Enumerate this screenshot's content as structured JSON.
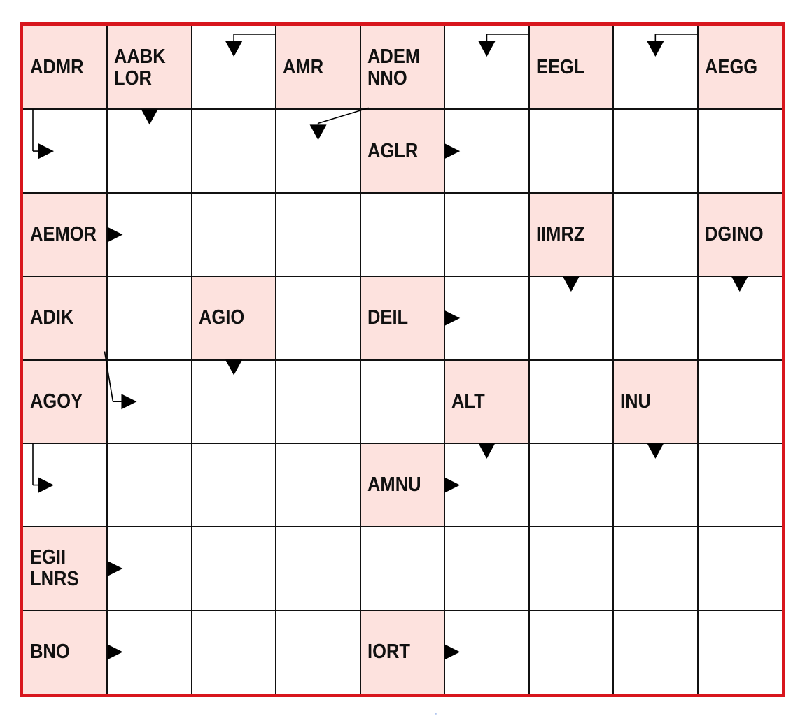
{
  "puzzle": {
    "rows": 8,
    "cols": 9,
    "colors": {
      "border": "#d8161d",
      "clue_fill": "#fde2de",
      "grid_line": "#111111"
    },
    "clues": [
      {
        "r": 0,
        "c": 0,
        "text": "ADMR"
      },
      {
        "r": 0,
        "c": 1,
        "text": "AABK\nLOR"
      },
      {
        "r": 0,
        "c": 3,
        "text": "AMR"
      },
      {
        "r": 0,
        "c": 4,
        "text": "ADEM\nNNO"
      },
      {
        "r": 0,
        "c": 6,
        "text": "EEGL"
      },
      {
        "r": 0,
        "c": 8,
        "text": "AEGG"
      },
      {
        "r": 1,
        "c": 4,
        "text": "AGLR"
      },
      {
        "r": 2,
        "c": 0,
        "text": "AEMOR"
      },
      {
        "r": 2,
        "c": 6,
        "text": "IIMRZ"
      },
      {
        "r": 2,
        "c": 8,
        "text": "DGINO"
      },
      {
        "r": 3,
        "c": 0,
        "text": "ADIK"
      },
      {
        "r": 3,
        "c": 2,
        "text": "AGIO"
      },
      {
        "r": 3,
        "c": 4,
        "text": "DEIL"
      },
      {
        "r": 4,
        "c": 0,
        "text": "AGOY"
      },
      {
        "r": 4,
        "c": 5,
        "text": "ALT"
      },
      {
        "r": 4,
        "c": 7,
        "text": "INU"
      },
      {
        "r": 5,
        "c": 4,
        "text": "AMNU"
      },
      {
        "r": 6,
        "c": 0,
        "text": "EGII\nLNRS"
      },
      {
        "r": 7,
        "c": 0,
        "text": "BNO"
      },
      {
        "r": 7,
        "c": 4,
        "text": "IORT"
      }
    ],
    "arrows": [
      {
        "kind": "down",
        "r": 0,
        "c": 2,
        "from": [
          0,
          3
        ]
      },
      {
        "kind": "down",
        "r": 0,
        "c": 5,
        "from": [
          0,
          6
        ]
      },
      {
        "kind": "down",
        "r": 0,
        "c": 7,
        "from": [
          0,
          8
        ]
      },
      {
        "kind": "right",
        "r": 1,
        "c": 0,
        "from": [
          0,
          0
        ]
      },
      {
        "kind": "down",
        "r": 1,
        "c": 1
      },
      {
        "kind": "down",
        "r": 1,
        "c": 3,
        "from": [
          0,
          4
        ]
      },
      {
        "kind": "right",
        "r": 1,
        "c": 5
      },
      {
        "kind": "right",
        "r": 2,
        "c": 1
      },
      {
        "kind": "down",
        "r": 3,
        "c": 6
      },
      {
        "kind": "down",
        "r": 3,
        "c": 8
      },
      {
        "kind": "right",
        "r": 3,
        "c": 5
      },
      {
        "kind": "down",
        "r": 4,
        "c": 2
      },
      {
        "kind": "right",
        "r": 4,
        "c": 1,
        "from": [
          3,
          0
        ]
      },
      {
        "kind": "down",
        "r": 5,
        "c": 5
      },
      {
        "kind": "down",
        "r": 5,
        "c": 7
      },
      {
        "kind": "right",
        "r": 5,
        "c": 0,
        "from": [
          4,
          0
        ]
      },
      {
        "kind": "right",
        "r": 5,
        "c": 5
      },
      {
        "kind": "right",
        "r": 6,
        "c": 1
      },
      {
        "kind": "right",
        "r": 7,
        "c": 1
      },
      {
        "kind": "right",
        "r": 7,
        "c": 5
      }
    ]
  },
  "footer": {
    "page_mark": "\""
  }
}
